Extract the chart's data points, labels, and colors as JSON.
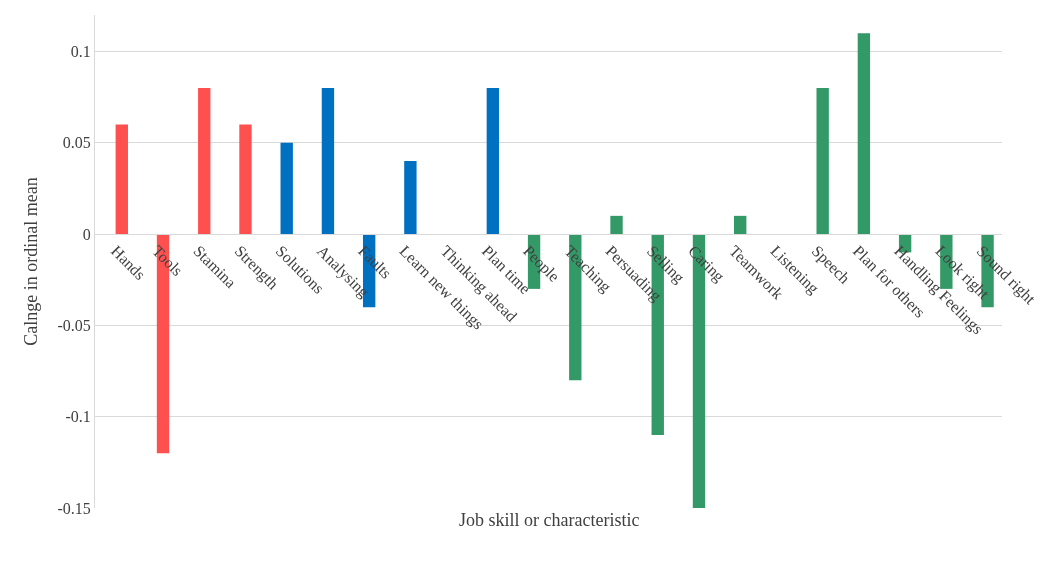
{
  "chart_data": {
    "type": "bar",
    "xlabel": "Job skill or characteristic",
    "ylabel": "Calnge in ordinal mean",
    "categories": [
      "Hands",
      "Tools",
      "Stamina",
      "Strength",
      "Solutions",
      "Analysing",
      "Faults",
      "Learn new things",
      "Thinking ahead",
      "Plan time",
      "People",
      "Teaching",
      "Persuading",
      "Selling",
      "Caring",
      "Teamwork",
      "Listening",
      "Speech",
      "Plan for others",
      "Handling Feelings",
      "Look right",
      "Sound right"
    ],
    "values": [
      0.06,
      -0.12,
      0.08,
      0.06,
      0.05,
      0.08,
      -0.04,
      0.04,
      0,
      0.08,
      -0.03,
      -0.08,
      0.01,
      -0.11,
      -0.15,
      0.01,
      0,
      0.08,
      0.11,
      -0.01,
      -0.03,
      -0.04
    ],
    "colors": [
      "#ff5050",
      "#ff5050",
      "#ff5050",
      "#ff5050",
      "#0070c0",
      "#0070c0",
      "#0070c0",
      "#0070c0",
      "#0070c0",
      "#0070c0",
      "#339966",
      "#339966",
      "#339966",
      "#339966",
      "#339966",
      "#339966",
      "#339966",
      "#339966",
      "#339966",
      "#339966",
      "#339966",
      "#339966"
    ],
    "ylim": [
      -0.15,
      0.12
    ],
    "yticks": [
      -0.15,
      -0.1,
      -0.05,
      0,
      0.05,
      0.1
    ],
    "grid": "y"
  }
}
